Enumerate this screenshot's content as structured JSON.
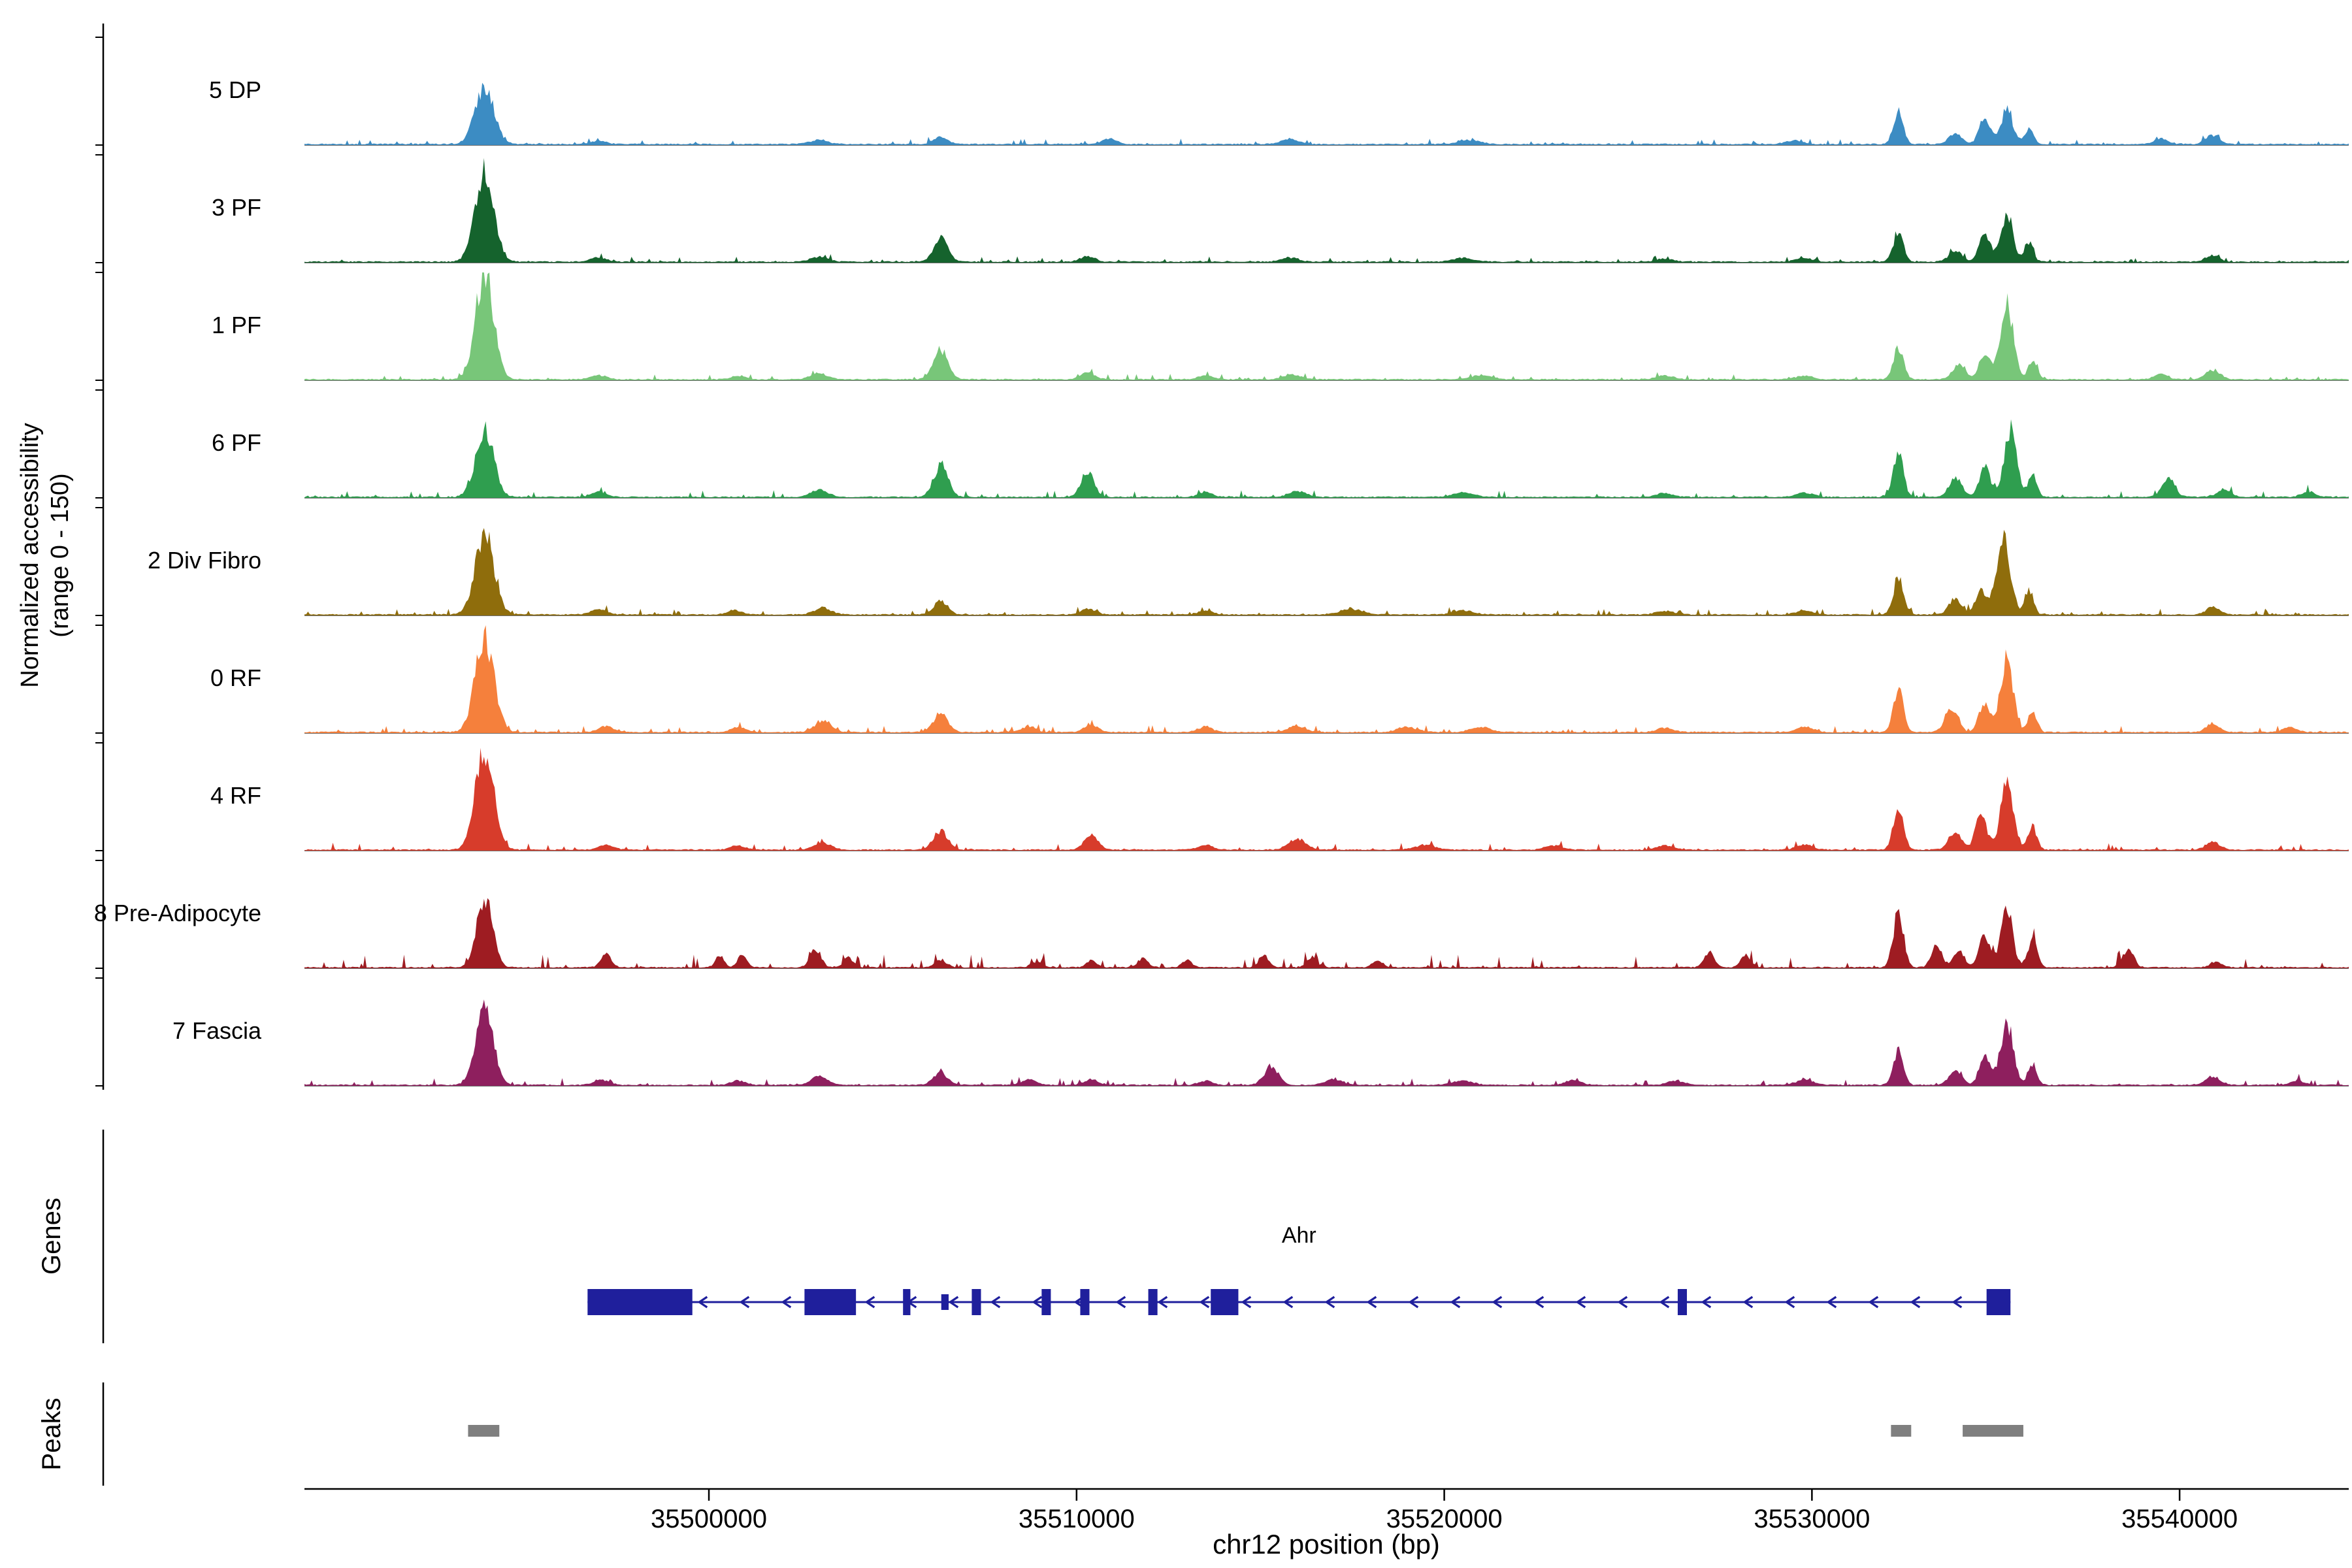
{
  "labels": {
    "y_axis_line1": "Normalized accessibility",
    "y_axis_line2": "(range 0 - 150)",
    "genes": "Genes",
    "peaks": "Peaks",
    "x_axis": "chr12 position (bp)"
  },
  "chart_data": {
    "type": "area",
    "description": "Genome browser coverage plot of normalized chromatin accessibility per cluster at the Ahr locus",
    "x_range": [
      35489000,
      35544600
    ],
    "y_range_per_track": [
      0,
      150
    ],
    "x_ticks": [
      {
        "value": 35500000,
        "label": "35500000"
      },
      {
        "value": 35510000,
        "label": "35510000"
      },
      {
        "value": 35520000,
        "label": "35520000"
      },
      {
        "value": 35530000,
        "label": "35530000"
      },
      {
        "value": 35540000,
        "label": "35540000"
      }
    ],
    "tracks": [
      {
        "name": "5 DP",
        "color": "#3c8cc3",
        "noise": 0.05,
        "peaks": [
          [
            35493900,
            80,
            560
          ],
          [
            35497000,
            5,
            450
          ],
          [
            35503000,
            6,
            500
          ],
          [
            35506300,
            10,
            420
          ],
          [
            35510900,
            8,
            420
          ],
          [
            35515800,
            7,
            500
          ],
          [
            35520700,
            6,
            600
          ],
          [
            35529500,
            5,
            500
          ],
          [
            35532350,
            45,
            300
          ],
          [
            35533900,
            15,
            380
          ],
          [
            35534700,
            38,
            330
          ],
          [
            35535300,
            48,
            350
          ],
          [
            35535900,
            22,
            260
          ],
          [
            35539500,
            8,
            380
          ],
          [
            35540900,
            13,
            400
          ]
        ]
      },
      {
        "name": "3 PF",
        "color": "#15632d",
        "noise": 0.05,
        "peaks": [
          [
            35493900,
            128,
            560
          ],
          [
            35497000,
            6,
            450
          ],
          [
            35503000,
            7,
            500
          ],
          [
            35506300,
            33,
            420
          ],
          [
            35510300,
            8,
            420
          ],
          [
            35515800,
            6,
            500
          ],
          [
            35520500,
            5,
            600
          ],
          [
            35526000,
            4,
            500
          ],
          [
            35529800,
            5,
            500
          ],
          [
            35532350,
            42,
            300
          ],
          [
            35533900,
            16,
            380
          ],
          [
            35534700,
            40,
            330
          ],
          [
            35535300,
            68,
            360
          ],
          [
            35535900,
            28,
            260
          ],
          [
            35540900,
            9,
            400
          ]
        ]
      },
      {
        "name": "1 PF",
        "color": "#78c679",
        "noise": 0.05,
        "peaks": [
          [
            35493900,
            147,
            540
          ],
          [
            35497000,
            6,
            450
          ],
          [
            35500800,
            5,
            420
          ],
          [
            35503000,
            8,
            500
          ],
          [
            35506300,
            42,
            420
          ],
          [
            35510300,
            9,
            420
          ],
          [
            35513500,
            6,
            420
          ],
          [
            35515900,
            7,
            500
          ],
          [
            35521000,
            6,
            600
          ],
          [
            35526000,
            5,
            500
          ],
          [
            35529800,
            5,
            500
          ],
          [
            35532350,
            44,
            300
          ],
          [
            35534000,
            20,
            380
          ],
          [
            35534700,
            35,
            330
          ],
          [
            35535300,
            105,
            380
          ],
          [
            35536000,
            26,
            260
          ],
          [
            35539500,
            8,
            380
          ],
          [
            35540900,
            14,
            400
          ]
        ]
      },
      {
        "name": "6 PF",
        "color": "#2f9e4f",
        "noise": 0.06,
        "peaks": [
          [
            35493900,
            92,
            540
          ],
          [
            35497000,
            7,
            450
          ],
          [
            35503000,
            10,
            500
          ],
          [
            35506300,
            44,
            420
          ],
          [
            35510300,
            36,
            380
          ],
          [
            35513500,
            7,
            420
          ],
          [
            35516000,
            8,
            500
          ],
          [
            35520500,
            6,
            600
          ],
          [
            35526000,
            5,
            500
          ],
          [
            35529800,
            6,
            500
          ],
          [
            35532350,
            62,
            300
          ],
          [
            35533900,
            28,
            380
          ],
          [
            35534700,
            40,
            330
          ],
          [
            35535400,
            93,
            380
          ],
          [
            35536000,
            30,
            260
          ],
          [
            35539700,
            26,
            380
          ],
          [
            35541200,
            10,
            400
          ],
          [
            35543500,
            7,
            400
          ]
        ]
      },
      {
        "name": "2 Div Fibro",
        "color": "#8f6d0c",
        "noise": 0.06,
        "peaks": [
          [
            35493900,
            112,
            560
          ],
          [
            35497000,
            7,
            450
          ],
          [
            35500700,
            6,
            420
          ],
          [
            35503100,
            9,
            500
          ],
          [
            35506300,
            18,
            420
          ],
          [
            35510300,
            8,
            420
          ],
          [
            35513500,
            6,
            420
          ],
          [
            35517500,
            7,
            700
          ],
          [
            35520500,
            6,
            600
          ],
          [
            35526000,
            5,
            500
          ],
          [
            35529800,
            6,
            500
          ],
          [
            35532350,
            52,
            300
          ],
          [
            35533900,
            22,
            380
          ],
          [
            35534600,
            35,
            330
          ],
          [
            35535200,
            112,
            400
          ],
          [
            35535900,
            35,
            260
          ],
          [
            35540900,
            10,
            400
          ]
        ]
      },
      {
        "name": "0 RF",
        "color": "#f5803c",
        "noise": 0.06,
        "peaks": [
          [
            35493900,
            134,
            560
          ],
          [
            35497200,
            8,
            450
          ],
          [
            35500800,
            7,
            420
          ],
          [
            35503100,
            16,
            500
          ],
          [
            35506300,
            27,
            420
          ],
          [
            35508700,
            8,
            420
          ],
          [
            35510400,
            10,
            420
          ],
          [
            35513500,
            8,
            420
          ],
          [
            35516000,
            9,
            500
          ],
          [
            35519000,
            7,
            600
          ],
          [
            35521000,
            7,
            600
          ],
          [
            35526000,
            6,
            500
          ],
          [
            35529800,
            7,
            500
          ],
          [
            35532350,
            58,
            300
          ],
          [
            35533800,
            32,
            380
          ],
          [
            35534700,
            42,
            330
          ],
          [
            35535300,
            100,
            380
          ],
          [
            35536000,
            30,
            260
          ],
          [
            35540900,
            12,
            400
          ],
          [
            35543000,
            7,
            400
          ]
        ]
      },
      {
        "name": "4 RF",
        "color": "#d73c2b",
        "noise": 0.06,
        "peaks": [
          [
            35493900,
            142,
            540
          ],
          [
            35497200,
            7,
            450
          ],
          [
            35500800,
            6,
            420
          ],
          [
            35503100,
            10,
            500
          ],
          [
            35506300,
            26,
            420
          ],
          [
            35510400,
            20,
            400
          ],
          [
            35513500,
            7,
            420
          ],
          [
            35516000,
            16,
            500
          ],
          [
            35519500,
            7,
            600
          ],
          [
            35523000,
            6,
            500
          ],
          [
            35526000,
            6,
            500
          ],
          [
            35529800,
            7,
            500
          ],
          [
            35532350,
            62,
            300
          ],
          [
            35533900,
            26,
            380
          ],
          [
            35534600,
            48,
            330
          ],
          [
            35535300,
            92,
            380
          ],
          [
            35536000,
            32,
            260
          ],
          [
            35540900,
            12,
            400
          ]
        ]
      },
      {
        "name": "8 Pre-Adipocyte",
        "color": "#9e1c22",
        "noise": 0.12,
        "peaks": [
          [
            35493900,
            98,
            470
          ],
          [
            35497200,
            20,
            300
          ],
          [
            35500300,
            16,
            260
          ],
          [
            35500900,
            18,
            260
          ],
          [
            35502900,
            26,
            320
          ],
          [
            35503800,
            14,
            280
          ],
          [
            35506300,
            10,
            350
          ],
          [
            35508900,
            8,
            300
          ],
          [
            35510400,
            10,
            300
          ],
          [
            35511800,
            13,
            280
          ],
          [
            35513000,
            10,
            280
          ],
          [
            35515100,
            16,
            300
          ],
          [
            35516400,
            14,
            280
          ],
          [
            35518200,
            10,
            300
          ],
          [
            35527200,
            20,
            300
          ],
          [
            35528200,
            18,
            280
          ],
          [
            35532350,
            80,
            300
          ],
          [
            35533400,
            28,
            320
          ],
          [
            35534000,
            24,
            320
          ],
          [
            35534700,
            45,
            330
          ],
          [
            35535300,
            78,
            360
          ],
          [
            35536000,
            38,
            280
          ],
          [
            35538600,
            26,
            320
          ],
          [
            35541000,
            8,
            350
          ]
        ]
      },
      {
        "name": "7 Fascia",
        "color": "#8e1f5e",
        "noise": 0.06,
        "peaks": [
          [
            35493900,
            104,
            520
          ],
          [
            35497100,
            7,
            450
          ],
          [
            35500800,
            6,
            420
          ],
          [
            35503000,
            12,
            480
          ],
          [
            35506300,
            18,
            420
          ],
          [
            35508700,
            7,
            420
          ],
          [
            35510400,
            8,
            420
          ],
          [
            35513500,
            6,
            420
          ],
          [
            35515300,
            26,
            420
          ],
          [
            35517000,
            8,
            500
          ],
          [
            35520500,
            6,
            600
          ],
          [
            35523500,
            6,
            500
          ],
          [
            35526300,
            6,
            500
          ],
          [
            35529800,
            7,
            500
          ],
          [
            35532350,
            46,
            300
          ],
          [
            35533900,
            20,
            380
          ],
          [
            35534700,
            38,
            330
          ],
          [
            35535300,
            88,
            380
          ],
          [
            35536000,
            28,
            260
          ],
          [
            35540900,
            12,
            400
          ],
          [
            35543200,
            6,
            400
          ]
        ]
      }
    ],
    "gene": {
      "name": "Ahr",
      "strand": "-",
      "color": "#1f1f9c",
      "start": 35496700,
      "end": 35535400,
      "exons": [
        [
          35496700,
          35499550,
          1
        ],
        [
          35502600,
          35504000,
          1
        ],
        [
          35505280,
          35505480,
          1
        ],
        [
          35506320,
          35506520,
          0.6
        ],
        [
          35507150,
          35507400,
          1
        ],
        [
          35509050,
          35509300,
          1
        ],
        [
          35510100,
          35510350,
          1
        ],
        [
          35511950,
          35512200,
          1
        ],
        [
          35513650,
          35514400,
          1
        ],
        [
          35526350,
          35526600,
          1
        ],
        [
          35534750,
          35535400,
          1
        ]
      ]
    },
    "peaks_track": {
      "color": "#7f7f7f",
      "regions": [
        [
          35493450,
          35494300
        ],
        [
          35532150,
          35532700
        ],
        [
          35534100,
          35535750
        ]
      ]
    }
  }
}
